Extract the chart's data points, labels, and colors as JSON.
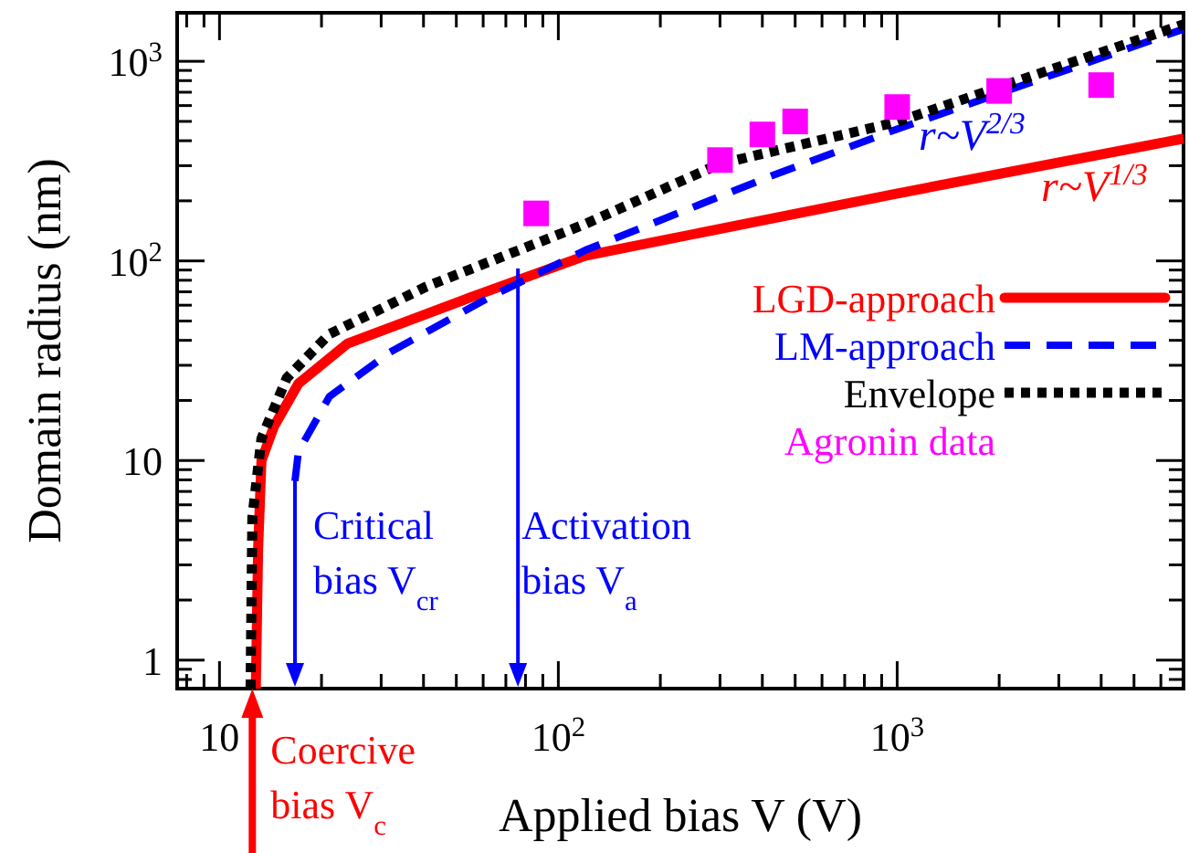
{
  "chart_data": {
    "type": "line",
    "xlabel": "Applied bias V (V)",
    "ylabel": "Domain radius (nm)",
    "log": "xy",
    "legend": "right",
    "grid": false,
    "xlim": [
      7.5,
      7000
    ],
    "ylim": [
      0.72,
      1750
    ],
    "xticks": [
      {
        "value": 8,
        "label": null
      },
      {
        "value": 9,
        "label": null
      },
      10,
      {
        "value": 20,
        "label": null
      },
      {
        "value": 30,
        "label": null
      },
      {
        "value": 40,
        "label": null
      },
      {
        "value": 50,
        "label": null
      },
      {
        "value": 60,
        "label": null
      },
      {
        "value": 70,
        "label": null
      },
      {
        "value": 80,
        "label": null
      },
      {
        "value": 90,
        "label": null
      },
      {
        "value": 100,
        "label": "10$^{2}$"
      },
      {
        "value": 200,
        "label": null
      },
      {
        "value": 300,
        "label": null
      },
      {
        "value": 400,
        "label": null
      },
      {
        "value": 500,
        "label": null
      },
      {
        "value": 600,
        "label": null
      },
      {
        "value": 700,
        "label": null
      },
      {
        "value": 800,
        "label": null
      },
      {
        "value": 900,
        "label": null
      },
      {
        "value": 1000,
        "label": "10$^{3}$"
      },
      {
        "value": 2000,
        "label": null
      },
      {
        "value": 3000,
        "label": null
      },
      {
        "value": 4000,
        "label": null
      },
      {
        "value": 5000,
        "label": null
      },
      {
        "value": 6000,
        "label": null
      },
      {
        "value": 7000,
        "label": null
      }
    ],
    "yticks": [
      {
        "value": 0.8,
        "label": null
      },
      {
        "value": 0.9,
        "label": null
      },
      1,
      {
        "value": 2,
        "label": null
      },
      {
        "value": 3,
        "label": null
      },
      {
        "value": 4,
        "label": null
      },
      {
        "value": 5,
        "label": null
      },
      {
        "value": 6,
        "label": null
      },
      {
        "value": 7,
        "label": null
      },
      {
        "value": 8,
        "label": null
      },
      {
        "value": 9,
        "label": null
      },
      10,
      {
        "value": 20,
        "label": null
      },
      {
        "value": 30,
        "label": null
      },
      {
        "value": 40,
        "label": null
      },
      {
        "value": 50,
        "label": null
      },
      {
        "value": 60,
        "label": null
      },
      {
        "value": 70,
        "label": null
      },
      {
        "value": 80,
        "label": null
      },
      {
        "value": 90,
        "label": null
      },
      {
        "value": 100,
        "label": "10$^{2}$"
      },
      {
        "value": 200,
        "label": null
      },
      {
        "value": 300,
        "label": null
      },
      {
        "value": 400,
        "label": null
      },
      {
        "value": 500,
        "label": null
      },
      {
        "value": 600,
        "label": null
      },
      {
        "value": 700,
        "label": null
      },
      {
        "value": 800,
        "label": null
      },
      {
        "value": 900,
        "label": null
      },
      {
        "value": 1000,
        "label": "10$^{3}$"
      }
    ],
    "series": [
      {
        "name": "LGD-approach",
        "color": "#ff0000",
        "line_style": "solid",
        "marker": "none",
        "x": [
          12.8,
          13,
          13.3,
          14.5,
          17.1,
          23.9,
          55,
          120,
          963,
          7000
        ],
        "values": [
          0.72,
          3.6,
          10,
          14.9,
          24.3,
          38.6,
          65.6,
          106,
          215,
          410
        ]
      },
      {
        "name": "LM-approach",
        "color": "#0000ff",
        "line_style": "dashed",
        "marker": "none",
        "x": [
          16.7,
          17.1,
          21.1,
          31.8,
          62.4,
          120,
          419,
          963,
          7000
        ],
        "values": [
          7.9,
          11.1,
          20.9,
          34.8,
          65.6,
          113,
          264,
          447,
          1450
        ]
      },
      {
        "name": "Envelope",
        "color": "#000000",
        "line_style": "dotted",
        "marker": "none",
        "x": [
          12.35,
          12.5,
          13.3,
          15.8,
          21.1,
          40.8,
          120,
          299,
          1000,
          7000
        ],
        "values": [
          0.72,
          5.2,
          12.9,
          25.9,
          43,
          74.4,
          153,
          306,
          497,
          1530
        ]
      },
      {
        "name": "Agronin data",
        "color": "#ff00ff",
        "type": "scatter",
        "marker": "square",
        "x": [
          86,
          300,
          400,
          500,
          1000,
          2000,
          4000
        ],
        "values": [
          173,
          320,
          430,
          500,
          590,
          710,
          760
        ]
      }
    ],
    "ref_lines": [
      {
        "axis": "x",
        "value": 16.7,
        "label": "Critical bias V$_{cr}$",
        "color": "#0000ff"
      },
      {
        "axis": "x",
        "value": 76,
        "label": "Activation bias V$_{a}$",
        "color": "#0000ff"
      },
      {
        "axis": "x",
        "value": 12.5,
        "label": "Coercive bias V$_{c}$",
        "color": "#ff0000"
      }
    ],
    "annotations": [
      "r~V$^{2/3}$",
      "r~V$^{1/3}$"
    ]
  }
}
